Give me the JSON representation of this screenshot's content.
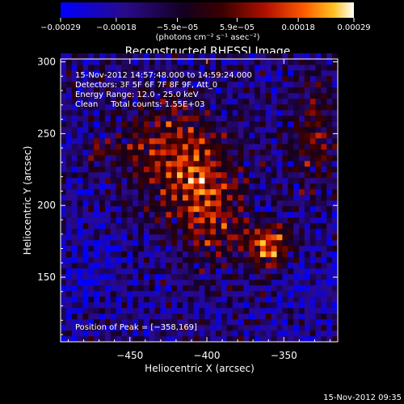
{
  "chart_data": {
    "type": "heatmap",
    "title": "Reconstructed RHESSI Image",
    "xlabel": "Heliocentric X (arcsec)",
    "ylabel": "Heliocentric Y (arcsec)",
    "xlim": [
      -495,
      -315
    ],
    "ylim": [
      105,
      302
    ],
    "x_ticks": [
      -450,
      -400,
      -350
    ],
    "x_tick_labels": [
      "−450",
      "−400",
      "−350"
    ],
    "y_ticks": [
      150,
      200,
      250,
      300
    ],
    "y_tick_labels": [
      "150",
      "200",
      "250",
      "300"
    ],
    "colorbar": {
      "range": [
        -0.00029,
        0.00029
      ],
      "tick_values": [
        -0.00029,
        -0.00018,
        -5.9e-05,
        5.9e-05,
        0.00018,
        0.00029
      ],
      "tick_labels": [
        "−0.00029",
        "−0.00018",
        "−5.9e−05",
        "5.9e−05",
        "0.00018",
        "0.00029"
      ],
      "unit_label": "(photons cm⁻² s⁻¹ asec⁻²)",
      "colors": [
        "#0000ff",
        "#2a0a8a",
        "#140020",
        "#3a0000",
        "#b01000",
        "#ff5a00",
        "#ffc020",
        "#ffffff"
      ]
    },
    "annotations": [
      "15‑Nov‑2012 14:57:48.000 to 14:59:24.000",
      "Detectors: 3F 5F 6F 7F 8F 9F, Att_0",
      "Energy Range: 12.0 ‑ 25.0 keV",
      "Clean     Total counts: 1.55E+03"
    ],
    "peak_label": "Position of Peak = [−358,169]",
    "peak": [
      -358,
      169
    ],
    "timestamp": "15‑Nov‑2012 09:35"
  }
}
